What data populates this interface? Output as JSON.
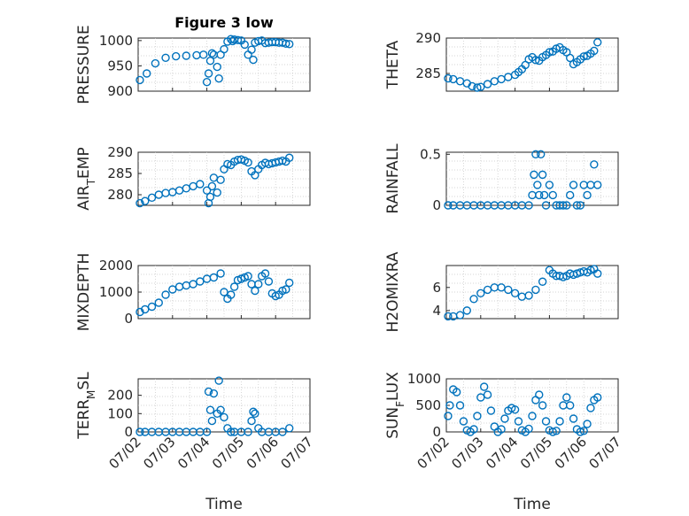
{
  "figure": {
    "title": "Figure 3 low",
    "marker_color": "#0072bd"
  },
  "chart_data": [
    {
      "type": "scatter",
      "title": "Figure 3 low",
      "ylabel": "PRESSURE",
      "xlabel": "",
      "ylim": [
        900,
        1005
      ],
      "yticks": [
        900,
        950,
        1000
      ],
      "xlim": [
        0,
        5
      ],
      "grid": true,
      "series": [
        {
          "x": [
            0.05,
            0.25,
            0.5,
            0.8,
            1.1,
            1.4,
            1.7,
            1.9,
            2.0,
            2.05,
            2.1,
            2.15,
            2.2,
            2.3,
            2.35,
            2.4,
            2.5,
            2.6,
            2.7,
            2.75,
            2.8,
            2.9,
            3.0,
            3.1,
            3.2,
            3.3,
            3.35,
            3.4,
            3.5,
            3.6,
            3.7,
            3.8,
            3.9,
            4.0,
            4.1,
            4.2,
            4.3,
            4.4
          ],
          "y": [
            922,
            935,
            955,
            966,
            969,
            970,
            971,
            972,
            918,
            935,
            960,
            975,
            972,
            948,
            925,
            972,
            983,
            998,
            1003,
            999,
            1002,
            1001,
            1000,
            992,
            972,
            982,
            962,
            996,
            999,
            1000,
            995,
            996,
            997,
            997,
            996,
            996,
            994,
            993
          ]
        }
      ]
    },
    {
      "type": "scatter",
      "ylabel": "THETA",
      "xlabel": "",
      "ylim": [
        282.5,
        290
      ],
      "yticks": [
        285,
        290
      ],
      "xlim": [
        0,
        5
      ],
      "grid": true,
      "series": [
        {
          "x": [
            0.05,
            0.2,
            0.4,
            0.6,
            0.75,
            0.9,
            1.0,
            1.2,
            1.4,
            1.6,
            1.8,
            2.0,
            2.1,
            2.2,
            2.3,
            2.4,
            2.5,
            2.6,
            2.7,
            2.8,
            2.9,
            3.0,
            3.1,
            3.2,
            3.3,
            3.4,
            3.5,
            3.6,
            3.7,
            3.8,
            3.9,
            4.0,
            4.1,
            4.2,
            4.3,
            4.4
          ],
          "y": [
            284.3,
            284.2,
            283.9,
            283.6,
            283.2,
            283.0,
            283.1,
            283.5,
            283.9,
            284.2,
            284.5,
            284.8,
            285.2,
            285.6,
            286.2,
            287.0,
            287.3,
            286.9,
            286.8,
            287.3,
            287.6,
            288.0,
            288.1,
            288.5,
            288.7,
            288.3,
            288.0,
            287.2,
            286.3,
            286.6,
            287.0,
            287.4,
            287.5,
            287.8,
            288.2,
            289.4
          ]
        }
      ]
    },
    {
      "type": "scatter",
      "ylabel": "AIR_TEMP",
      "xlabel": "",
      "ylim": [
        277.5,
        290
      ],
      "yticks": [
        280,
        285,
        290
      ],
      "xlim": [
        0,
        5
      ],
      "grid": true,
      "series": [
        {
          "x": [
            0.05,
            0.2,
            0.4,
            0.6,
            0.8,
            1.0,
            1.2,
            1.4,
            1.6,
            1.8,
            2.0,
            2.05,
            2.1,
            2.15,
            2.2,
            2.3,
            2.4,
            2.5,
            2.6,
            2.7,
            2.8,
            2.9,
            3.0,
            3.1,
            3.2,
            3.3,
            3.4,
            3.5,
            3.6,
            3.7,
            3.8,
            3.9,
            4.0,
            4.1,
            4.2,
            4.3,
            4.4
          ],
          "y": [
            278.0,
            278.5,
            279.3,
            280.0,
            280.4,
            280.6,
            281.0,
            281.5,
            282.0,
            282.5,
            281.0,
            278.0,
            279.5,
            282.0,
            284.0,
            280.5,
            283.5,
            286.0,
            287.2,
            287.0,
            287.8,
            288.2,
            288.3,
            288.0,
            287.6,
            285.5,
            284.6,
            286.0,
            287.0,
            287.5,
            287.2,
            287.4,
            287.6,
            287.8,
            288.0,
            287.8,
            288.7
          ]
        }
      ]
    },
    {
      "type": "scatter",
      "ylabel": "RAINFALL",
      "xlabel": "",
      "ylim": [
        0,
        0.52
      ],
      "yticks": [
        0,
        0.5
      ],
      "xlim": [
        0,
        5
      ],
      "grid": true,
      "series": [
        {
          "x": [
            0.05,
            0.2,
            0.4,
            0.6,
            0.8,
            1.0,
            1.2,
            1.4,
            1.6,
            1.8,
            2.0,
            2.2,
            2.4,
            2.5,
            2.55,
            2.6,
            2.65,
            2.7,
            2.75,
            2.8,
            2.85,
            2.9,
            3.0,
            3.1,
            3.2,
            3.3,
            3.4,
            3.5,
            3.6,
            3.7,
            3.8,
            3.9,
            4.0,
            4.1,
            4.2,
            4.3,
            4.4
          ],
          "y": [
            0,
            0,
            0,
            0,
            0,
            0,
            0,
            0,
            0,
            0,
            0,
            0,
            0,
            0.1,
            0.3,
            0.5,
            0.2,
            0.1,
            0.5,
            0.3,
            0.1,
            0,
            0.2,
            0.1,
            0,
            0,
            0,
            0,
            0.1,
            0.2,
            0,
            0,
            0.2,
            0.1,
            0.2,
            0.4,
            0.2
          ]
        }
      ]
    },
    {
      "type": "scatter",
      "ylabel": "MIXDEPTH",
      "xlabel": "",
      "ylim": [
        0,
        2000
      ],
      "yticks": [
        0,
        1000,
        2000
      ],
      "xlim": [
        0,
        5
      ],
      "grid": true,
      "series": [
        {
          "x": [
            0.05,
            0.2,
            0.4,
            0.6,
            0.8,
            1.0,
            1.2,
            1.4,
            1.6,
            1.8,
            2.0,
            2.2,
            2.4,
            2.5,
            2.6,
            2.7,
            2.8,
            2.9,
            3.0,
            3.1,
            3.2,
            3.3,
            3.4,
            3.5,
            3.6,
            3.7,
            3.8,
            3.9,
            4.0,
            4.1,
            4.2,
            4.3,
            4.4
          ],
          "y": [
            250,
            350,
            450,
            600,
            900,
            1100,
            1200,
            1250,
            1300,
            1400,
            1500,
            1550,
            1700,
            1000,
            750,
            900,
            1200,
            1450,
            1500,
            1550,
            1600,
            1300,
            1050,
            1300,
            1600,
            1700,
            1400,
            950,
            850,
            900,
            1050,
            1100,
            1350
          ]
        }
      ]
    },
    {
      "type": "scatter",
      "ylabel": "H2OMIXRA",
      "xlabel": "",
      "ylim": [
        3.3,
        7.9
      ],
      "yticks": [
        4,
        6
      ],
      "xlim": [
        0,
        5
      ],
      "grid": true,
      "series": [
        {
          "x": [
            0.05,
            0.2,
            0.4,
            0.6,
            0.8,
            1.0,
            1.2,
            1.4,
            1.6,
            1.8,
            2.0,
            2.2,
            2.4,
            2.6,
            2.8,
            3.0,
            3.1,
            3.2,
            3.3,
            3.4,
            3.5,
            3.6,
            3.7,
            3.8,
            3.9,
            4.0,
            4.1,
            4.2,
            4.3,
            4.4
          ],
          "y": [
            3.5,
            3.5,
            3.6,
            4.0,
            5.0,
            5.5,
            5.8,
            6.0,
            6.0,
            5.8,
            5.5,
            5.2,
            5.3,
            5.8,
            6.5,
            7.5,
            7.2,
            7.0,
            7.0,
            6.9,
            7.0,
            7.2,
            7.1,
            7.2,
            7.3,
            7.4,
            7.3,
            7.5,
            7.6,
            7.2
          ]
        }
      ]
    },
    {
      "type": "scatter",
      "ylabel": "TERR_MSL",
      "xlabel": "Time",
      "ylim": [
        0,
        290
      ],
      "yticks": [
        0,
        100,
        200
      ],
      "xlim": [
        0,
        5
      ],
      "xticks": [
        "07/02",
        "07/03",
        "07/04",
        "07/05",
        "07/06",
        "07/07"
      ],
      "grid": true,
      "series": [
        {
          "x": [
            0.05,
            0.2,
            0.4,
            0.6,
            0.8,
            1.0,
            1.2,
            1.4,
            1.6,
            1.8,
            2.0,
            2.05,
            2.1,
            2.15,
            2.2,
            2.3,
            2.35,
            2.4,
            2.5,
            2.6,
            2.7,
            2.8,
            3.0,
            3.2,
            3.3,
            3.35,
            3.4,
            3.5,
            3.6,
            3.8,
            4.0,
            4.2,
            4.4
          ],
          "y": [
            0,
            0,
            0,
            0,
            0,
            0,
            0,
            0,
            0,
            0,
            0,
            220,
            120,
            60,
            210,
            100,
            280,
            120,
            80,
            20,
            0,
            0,
            0,
            0,
            60,
            110,
            100,
            20,
            0,
            0,
            0,
            0,
            20
          ]
        }
      ]
    },
    {
      "type": "scatter",
      "ylabel": "SUN_FLUX",
      "xlabel": "Time",
      "ylim": [
        0,
        1000
      ],
      "yticks": [
        0,
        500,
        1000
      ],
      "xlim": [
        0,
        5
      ],
      "xticks": [
        "07/02",
        "07/03",
        "07/04",
        "07/05",
        "07/06",
        "07/07"
      ],
      "grid": true,
      "series": [
        {
          "x": [
            0.05,
            0.1,
            0.2,
            0.3,
            0.4,
            0.5,
            0.6,
            0.7,
            0.8,
            0.9,
            1.0,
            1.1,
            1.2,
            1.3,
            1.4,
            1.5,
            1.6,
            1.7,
            1.8,
            1.9,
            2.0,
            2.1,
            2.2,
            2.3,
            2.4,
            2.5,
            2.6,
            2.7,
            2.8,
            2.9,
            3.0,
            3.1,
            3.2,
            3.3,
            3.4,
            3.5,
            3.6,
            3.7,
            3.8,
            3.9,
            4.0,
            4.1,
            4.2,
            4.3,
            4.4
          ],
          "y": [
            300,
            500,
            800,
            750,
            500,
            200,
            30,
            0,
            50,
            300,
            650,
            850,
            700,
            400,
            100,
            0,
            50,
            250,
            400,
            450,
            420,
            200,
            30,
            0,
            60,
            300,
            600,
            700,
            500,
            200,
            30,
            0,
            20,
            200,
            500,
            650,
            500,
            250,
            50,
            0,
            20,
            150,
            450,
            600,
            650
          ]
        }
      ]
    }
  ]
}
